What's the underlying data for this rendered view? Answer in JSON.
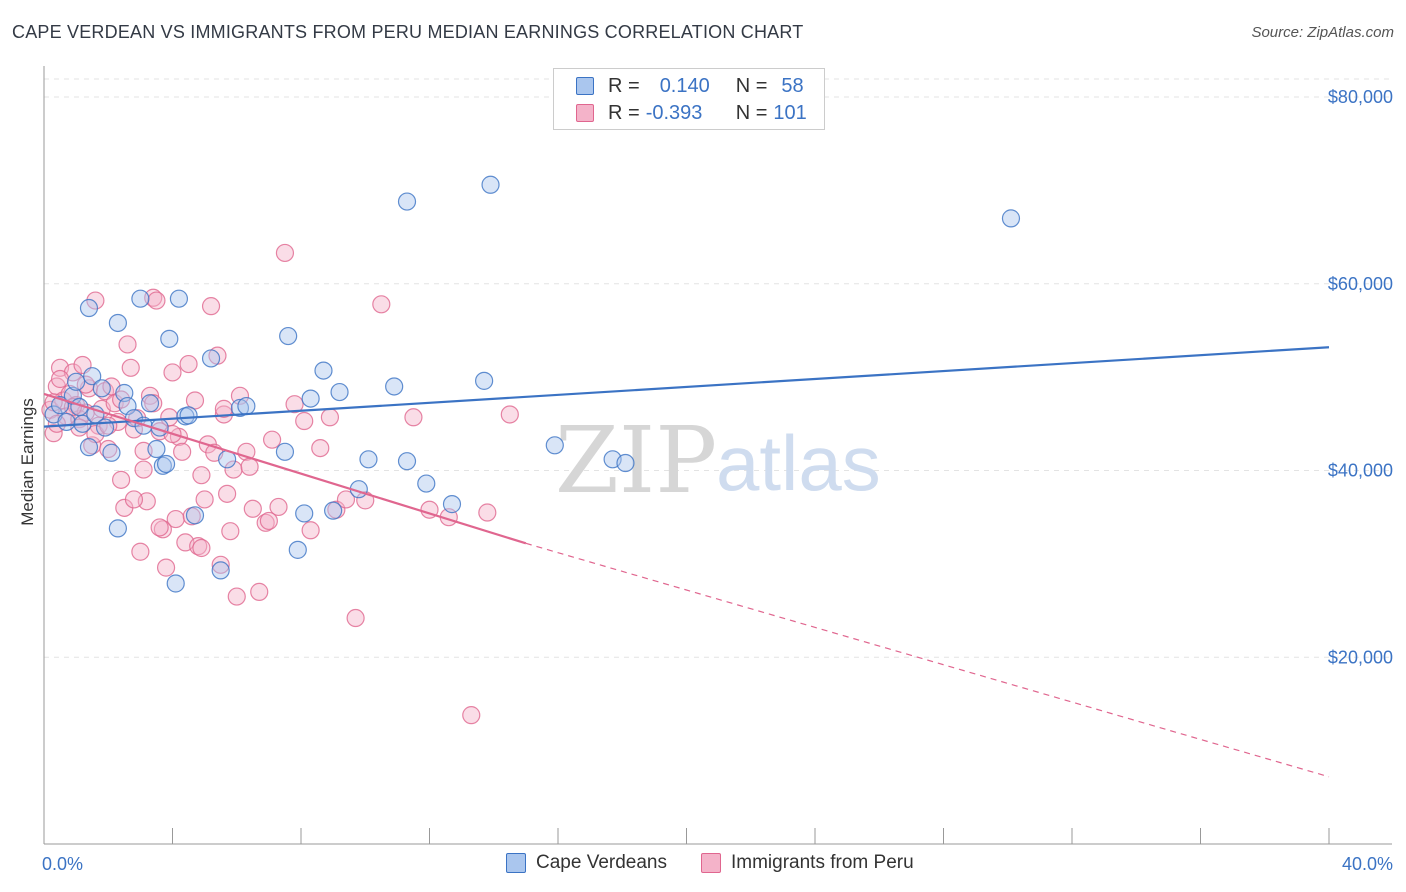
{
  "header": {
    "title": "CAPE VERDEAN VS IMMIGRANTS FROM PERU MEDIAN EARNINGS CORRELATION CHART",
    "source": "Source: ZipAtlas.com"
  },
  "watermark": {
    "zip": "ZIP",
    "atlas": "atlas"
  },
  "legend": {
    "rows": [
      {
        "r_label": "R =",
        "r_value": "0.140",
        "n_label": "N =",
        "n_value": "58"
      },
      {
        "r_label": "R =",
        "r_value": "-0.393",
        "n_label": "N =",
        "n_value": "101"
      }
    ]
  },
  "bottom_legend": {
    "series1": "Cape Verdeans",
    "series2": "Immigrants from Peru"
  },
  "chart_data": {
    "type": "scatter",
    "ylabel": "Median Earnings",
    "xlim": [
      0,
      40
    ],
    "ylim": [
      0,
      82000
    ],
    "x_tick_labels": [
      "0.0%",
      "40.0%"
    ],
    "y_ticks": [
      {
        "value": 20000,
        "label": "$20,000"
      },
      {
        "value": 40000,
        "label": "$40,000"
      },
      {
        "value": 60000,
        "label": "$60,000"
      },
      {
        "value": 80000,
        "label": "$80,000"
      }
    ],
    "grid": true,
    "colors": {
      "blue": "#3b73c4",
      "blue_fill": "#aac6ee",
      "pink": "#e0668f",
      "pink_fill": "#f4b3c9"
    },
    "series": [
      {
        "name": "Cape Verdeans",
        "trend": {
          "x": [
            0,
            40
          ],
          "y": [
            44700,
            53200
          ],
          "style": "solid"
        },
        "points": [
          [
            0.3,
            46000
          ],
          [
            0.5,
            47000
          ],
          [
            0.7,
            45200
          ],
          [
            0.9,
            48000
          ],
          [
            1.0,
            49500
          ],
          [
            1.1,
            46800
          ],
          [
            1.2,
            45000
          ],
          [
            1.4,
            42500
          ],
          [
            1.5,
            50100
          ],
          [
            1.6,
            46000
          ],
          [
            1.8,
            48800
          ],
          [
            1.9,
            44600
          ],
          [
            2.1,
            41900
          ],
          [
            2.3,
            55800
          ],
          [
            2.5,
            48300
          ],
          [
            2.6,
            46900
          ],
          [
            2.8,
            45600
          ],
          [
            3.0,
            58400
          ],
          [
            3.1,
            44800
          ],
          [
            3.3,
            47200
          ],
          [
            3.5,
            42300
          ],
          [
            3.7,
            40500
          ],
          [
            3.8,
            40700
          ],
          [
            3.9,
            54100
          ],
          [
            4.2,
            58400
          ],
          [
            4.4,
            45800
          ],
          [
            4.5,
            45900
          ],
          [
            4.7,
            35200
          ],
          [
            5.2,
            52000
          ],
          [
            5.5,
            29300
          ],
          [
            5.7,
            41200
          ],
          [
            6.1,
            46700
          ],
          [
            6.3,
            46900
          ],
          [
            7.5,
            42000
          ],
          [
            7.6,
            54400
          ],
          [
            7.9,
            31500
          ],
          [
            8.1,
            35400
          ],
          [
            8.3,
            47700
          ],
          [
            8.7,
            50700
          ],
          [
            9.0,
            35700
          ],
          [
            9.2,
            48400
          ],
          [
            9.8,
            38000
          ],
          [
            10.1,
            41200
          ],
          [
            10.9,
            49000
          ],
          [
            11.3,
            41000
          ],
          [
            11.3,
            68800
          ],
          [
            11.9,
            38600
          ],
          [
            12.7,
            36400
          ],
          [
            13.7,
            49600
          ],
          [
            13.9,
            70600
          ],
          [
            15.9,
            42700
          ],
          [
            17.7,
            41200
          ],
          [
            18.1,
            40800
          ],
          [
            30.1,
            67000
          ],
          [
            2.3,
            33800
          ],
          [
            4.1,
            27900
          ],
          [
            1.4,
            57400
          ],
          [
            3.6,
            44600
          ]
        ]
      },
      {
        "name": "Immigrants from Peru",
        "trend": {
          "x": [
            0,
            15
          ],
          "y": [
            48200,
            32200
          ],
          "style": "solid",
          "dash_to": {
            "x": 40,
            "y": 7200
          }
        },
        "points": [
          [
            0.2,
            46500
          ],
          [
            0.3,
            44000
          ],
          [
            0.4,
            49000
          ],
          [
            0.5,
            51000
          ],
          [
            0.6,
            47500
          ],
          [
            0.7,
            45800
          ],
          [
            0.8,
            48200
          ],
          [
            0.9,
            50500
          ],
          [
            1.0,
            47000
          ],
          [
            1.1,
            45500
          ],
          [
            1.2,
            51300
          ],
          [
            1.3,
            46200
          ],
          [
            1.4,
            48800
          ],
          [
            1.5,
            42700
          ],
          [
            1.6,
            58200
          ],
          [
            1.7,
            44800
          ],
          [
            1.8,
            46600
          ],
          [
            1.9,
            48500
          ],
          [
            2.0,
            42300
          ],
          [
            2.1,
            49000
          ],
          [
            2.2,
            47200
          ],
          [
            2.3,
            45200
          ],
          [
            2.4,
            39000
          ],
          [
            2.5,
            36000
          ],
          [
            2.6,
            53500
          ],
          [
            2.7,
            51000
          ],
          [
            2.8,
            44400
          ],
          [
            2.9,
            45600
          ],
          [
            3.0,
            31300
          ],
          [
            3.1,
            42100
          ],
          [
            3.2,
            36700
          ],
          [
            3.3,
            48000
          ],
          [
            3.4,
            58500
          ],
          [
            3.5,
            58200
          ],
          [
            3.6,
            44200
          ],
          [
            3.7,
            33700
          ],
          [
            3.8,
            29600
          ],
          [
            3.9,
            45700
          ],
          [
            4.0,
            50500
          ],
          [
            4.1,
            34800
          ],
          [
            4.2,
            43600
          ],
          [
            4.3,
            42000
          ],
          [
            4.4,
            32300
          ],
          [
            4.5,
            51400
          ],
          [
            4.6,
            35100
          ],
          [
            4.7,
            47500
          ],
          [
            4.8,
            31900
          ],
          [
            4.9,
            39500
          ],
          [
            5.0,
            36900
          ],
          [
            5.1,
            42800
          ],
          [
            5.2,
            57600
          ],
          [
            5.3,
            41900
          ],
          [
            5.4,
            52300
          ],
          [
            5.5,
            29900
          ],
          [
            5.6,
            46000
          ],
          [
            5.7,
            37500
          ],
          [
            5.8,
            33500
          ],
          [
            5.9,
            40100
          ],
          [
            6.0,
            26500
          ],
          [
            6.1,
            48000
          ],
          [
            6.3,
            42000
          ],
          [
            6.5,
            35900
          ],
          [
            6.7,
            27000
          ],
          [
            6.9,
            34400
          ],
          [
            7.1,
            43300
          ],
          [
            7.3,
            36100
          ],
          [
            7.5,
            63300
          ],
          [
            7.8,
            47100
          ],
          [
            8.1,
            45300
          ],
          [
            8.3,
            33600
          ],
          [
            8.6,
            42400
          ],
          [
            8.9,
            45700
          ],
          [
            9.1,
            35800
          ],
          [
            9.4,
            36900
          ],
          [
            9.7,
            24200
          ],
          [
            10.0,
            36800
          ],
          [
            10.5,
            57800
          ],
          [
            11.5,
            45700
          ],
          [
            12.0,
            35800
          ],
          [
            12.6,
            35000
          ],
          [
            13.3,
            13800
          ],
          [
            13.8,
            35500
          ],
          [
            14.5,
            46000
          ],
          [
            0.3,
            47300
          ],
          [
            0.9,
            46800
          ],
          [
            1.6,
            43900
          ],
          [
            2.4,
            47600
          ],
          [
            3.1,
            40100
          ],
          [
            1.1,
            44600
          ],
          [
            5.6,
            46600
          ],
          [
            4.0,
            43900
          ],
          [
            2.0,
            44800
          ],
          [
            1.3,
            49200
          ],
          [
            0.5,
            49800
          ],
          [
            3.4,
            47200
          ],
          [
            2.8,
            36900
          ],
          [
            6.4,
            40400
          ],
          [
            7.0,
            34600
          ],
          [
            4.9,
            31700
          ],
          [
            3.6,
            33900
          ],
          [
            0.4,
            45000
          ]
        ]
      }
    ]
  }
}
